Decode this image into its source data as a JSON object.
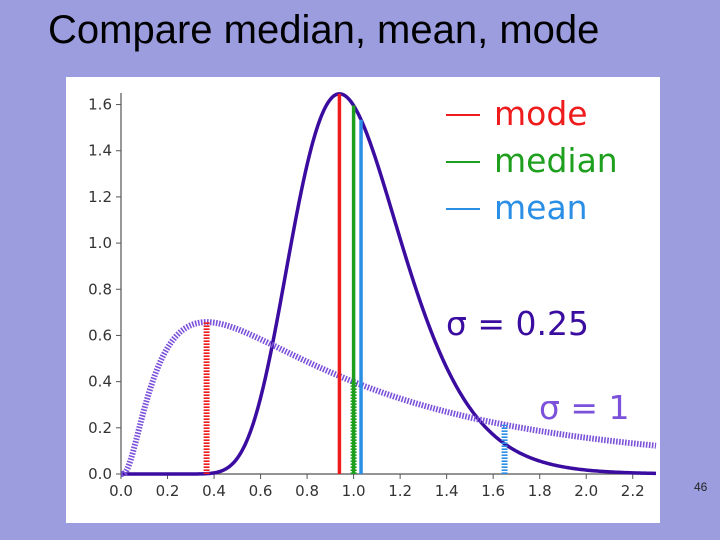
{
  "slide": {
    "title": "Compare median, mean, mode",
    "page_number": "46"
  },
  "chart_data": {
    "type": "line",
    "title": "",
    "xlabel": "",
    "ylabel": "",
    "xlim": [
      0.0,
      2.3
    ],
    "ylim": [
      0.0,
      1.65
    ],
    "x_ticks": [
      "0.0",
      "0.2",
      "0.4",
      "0.6",
      "0.8",
      "1.0",
      "1.2",
      "1.4",
      "1.6",
      "1.8",
      "2.0",
      "2.2"
    ],
    "y_ticks": [
      "0.0",
      "0.2",
      "0.4",
      "0.6",
      "0.8",
      "1.0",
      "1.2",
      "1.4",
      "1.6"
    ],
    "grid": false,
    "legend": {
      "placement": "top-right",
      "entries": [
        {
          "name": "mode",
          "color": "#ee1c1c"
        },
        {
          "name": "median",
          "color": "#1e9f1e"
        },
        {
          "name": "mean",
          "color": "#2b8fe6"
        }
      ]
    },
    "series": [
      {
        "name": "",
        "annotation": "σ = 0.25",
        "style": "solid",
        "color": "#3b0ca0",
        "distribution": "lognormal",
        "mu": 0,
        "sigma": 0.25,
        "mode": 0.939,
        "median": 1.0,
        "mean": 1.032,
        "peak": 1.63
      },
      {
        "name": "",
        "annotation": "σ = 1",
        "style": "dashed",
        "color": "#7b52d9",
        "distribution": "lognormal",
        "mu": 0,
        "sigma": 1,
        "mode": 0.368,
        "median": 1.0,
        "mean": 1.649,
        "peak": 0.66
      }
    ]
  }
}
